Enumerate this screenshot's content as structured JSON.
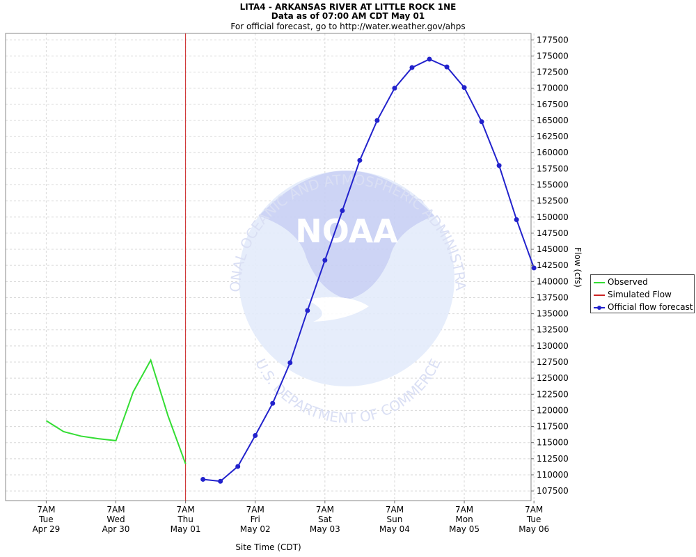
{
  "header": {
    "title": "LITA4 - ARKANSAS RIVER AT LITTLE ROCK 1NE",
    "subtitle": "Data as of 07:00 AM CDT May 01",
    "note": "For official forecast, go to http://water.weather.gov/ahps"
  },
  "watermark": {
    "text_top": "NATIONAL OCEANIC AND ATMOSPHERIC ADMINISTRATION",
    "text_bottom": "U.S. DEPARTMENT OF COMMERCE",
    "logo_text": "NOAA"
  },
  "colors": {
    "observed": "#33dd33",
    "simulated": "#cc2222",
    "forecast": "#2222cc",
    "grid": "#d8d8d8"
  },
  "chart_data": {
    "type": "line",
    "xlabel": "Site Time (CDT)",
    "ylabel": "Flow (cfs)",
    "ylim": [
      106000,
      178500
    ],
    "y_ticks": [
      107500,
      110000,
      112500,
      115000,
      117500,
      120000,
      122500,
      125000,
      127500,
      130000,
      132500,
      135000,
      137500,
      140000,
      142500,
      145000,
      147500,
      150000,
      152500,
      155000,
      157500,
      160000,
      162500,
      165000,
      167500,
      170000,
      172500,
      175000,
      177500
    ],
    "x_range_hours": [
      -62,
      119
    ],
    "x_ticks": [
      {
        "hour": -48,
        "time": "7AM",
        "day": "Tue",
        "date": "Apr 29"
      },
      {
        "hour": -24,
        "time": "7AM",
        "day": "Wed",
        "date": "Apr 30"
      },
      {
        "hour": 0,
        "time": "7AM",
        "day": "Thu",
        "date": "May 01"
      },
      {
        "hour": 24,
        "time": "7AM",
        "day": "Fri",
        "date": "May 02"
      },
      {
        "hour": 48,
        "time": "7AM",
        "day": "Sat",
        "date": "May 03"
      },
      {
        "hour": 72,
        "time": "7AM",
        "day": "Sun",
        "date": "May 04"
      },
      {
        "hour": 96,
        "time": "7AM",
        "day": "Mon",
        "date": "May 05"
      },
      {
        "hour": 120,
        "time": "7AM",
        "day": "Tue",
        "date": "May 06"
      }
    ],
    "current_time_hour": 0,
    "legend_position": "right",
    "series": [
      {
        "name": "Observed",
        "marker": false,
        "x": [
          -48,
          -42,
          -36,
          -30,
          -24,
          -18,
          -12,
          -6,
          0
        ],
        "y": [
          118400,
          116700,
          116000,
          115600,
          115300,
          122900,
          127800,
          119100,
          111700
        ]
      },
      {
        "name": "Simulated Flow",
        "marker": false,
        "x": [],
        "y": []
      },
      {
        "name": "Official flow forecast",
        "marker": true,
        "x": [
          6,
          12,
          18,
          24,
          30,
          36,
          42,
          48,
          54,
          60,
          66,
          72,
          78,
          84,
          90,
          96,
          102,
          108,
          114,
          120
        ],
        "y": [
          109300,
          109000,
          111300,
          116100,
          121100,
          127400,
          135500,
          143300,
          151000,
          158800,
          165000,
          170000,
          173200,
          174500,
          173300,
          170100,
          164800,
          158000,
          149600,
          142100
        ]
      }
    ]
  }
}
